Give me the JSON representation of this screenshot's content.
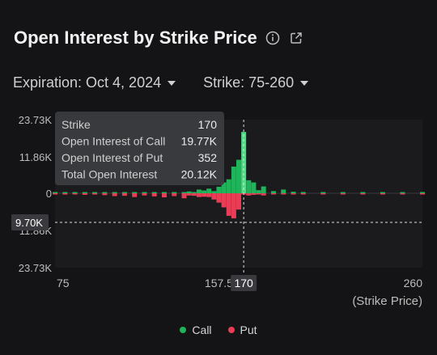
{
  "header": {
    "title": "Open Interest by Strike Price",
    "info_icon": "info-icon",
    "share_icon": "share-icon"
  },
  "filters": {
    "expiration": "Expiration: Oct 4, 2024",
    "strike": "Strike: 75-260"
  },
  "tooltip": {
    "rows": [
      {
        "label": "Strike",
        "value": "170"
      },
      {
        "label": "Open Interest of Call",
        "value": "19.77K"
      },
      {
        "label": "Open Interest of Put",
        "value": "352"
      },
      {
        "label": "Total Open Interest",
        "value": "20.12K"
      }
    ]
  },
  "crosshair": {
    "x_label": "170",
    "y_label": "9.70K"
  },
  "legend": [
    {
      "label": "Call",
      "color": "#1fb35a"
    },
    {
      "label": "Put",
      "color": "#e83d55"
    }
  ],
  "chart_data": {
    "type": "bar",
    "xlabel": "(Strike Price)",
    "x_ticks": [
      "75",
      "157.5",
      "260"
    ],
    "y_ticks": [
      "23.73K",
      "11.86K",
      "0",
      "11.86K",
      "23.73K"
    ],
    "ylim": [
      -23730,
      23730
    ],
    "xlim": [
      75,
      260
    ],
    "colors": {
      "call": "#1fb35a",
      "put": "#e83d55",
      "highlight_call": "#4fdc84"
    },
    "highlight_strike": 170,
    "series": [
      {
        "name": "Call",
        "x": [
          75,
          80,
          85,
          90,
          95,
          100,
          105,
          110,
          115,
          120,
          125,
          130,
          135,
          140,
          142.5,
          145,
          147.5,
          150,
          152.5,
          155,
          157.5,
          160,
          162.5,
          165,
          167.5,
          170,
          172.5,
          175,
          177.5,
          180,
          185,
          190,
          195,
          200,
          210,
          220,
          230,
          240,
          250,
          260
        ],
        "values": [
          400,
          300,
          250,
          300,
          250,
          250,
          300,
          200,
          250,
          300,
          250,
          200,
          300,
          350,
          600,
          300,
          1200,
          900,
          1500,
          700,
          2100,
          3500,
          4500,
          8600,
          10800,
          19770,
          4200,
          3500,
          1000,
          2200,
          700,
          1200,
          500,
          400,
          300,
          300,
          200,
          300,
          200,
          300
        ]
      },
      {
        "name": "Put",
        "x": [
          75,
          80,
          85,
          90,
          95,
          100,
          105,
          110,
          115,
          120,
          125,
          130,
          135,
          140,
          142.5,
          145,
          147.5,
          150,
          152.5,
          155,
          157.5,
          160,
          162.5,
          165,
          167.5,
          170,
          172.5,
          175,
          177.5,
          180,
          185,
          190,
          195,
          200,
          210,
          220,
          230,
          240,
          250,
          260
        ],
        "values": [
          -300,
          -400,
          -300,
          -500,
          -400,
          -600,
          -900,
          -800,
          -1200,
          -700,
          -1000,
          -1300,
          -900,
          -1600,
          -700,
          -800,
          -1200,
          -1100,
          -1200,
          -2000,
          -3000,
          -4500,
          -7200,
          -8000,
          -5200,
          -352,
          -700,
          -500,
          -300,
          -700,
          -300,
          -200,
          -200,
          -100,
          -100,
          -100,
          -100,
          -100,
          -100,
          -100
        ]
      }
    ]
  }
}
